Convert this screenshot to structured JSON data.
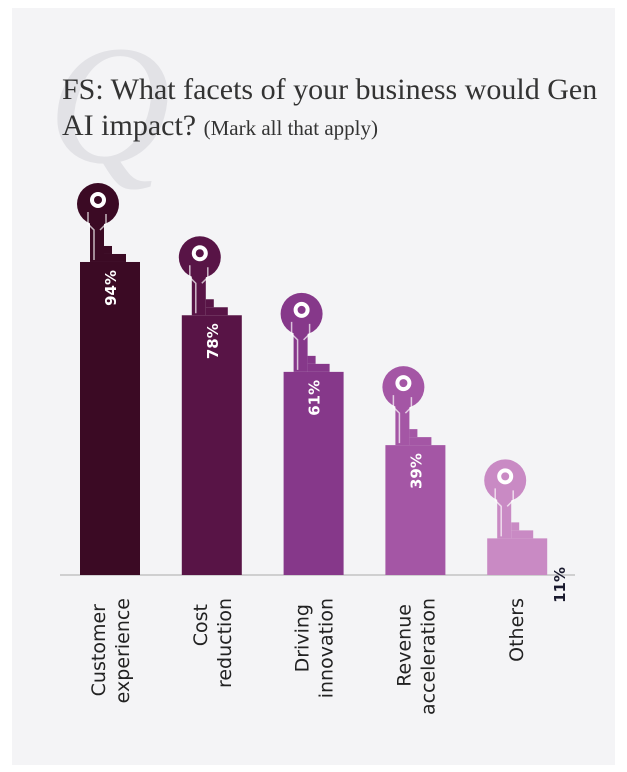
{
  "chart_data": {
    "type": "bar",
    "watermark": "Q",
    "title": "FS: What facets of your business would Gen AI impact?",
    "subtitle": "(Mark all that apply)",
    "categories": [
      "Customer experience",
      "Cost reduction",
      "Driving innovation",
      "Revenue acceleration",
      "Others"
    ],
    "values": [
      94,
      78,
      61,
      39,
      11
    ],
    "value_labels": [
      "94%",
      "78%",
      "61%",
      "39%",
      "11%"
    ],
    "colors": [
      "#3b0a24",
      "#581446",
      "#86388a",
      "#a456a5",
      "#c98ac4"
    ],
    "ylim": [
      0,
      100
    ]
  }
}
